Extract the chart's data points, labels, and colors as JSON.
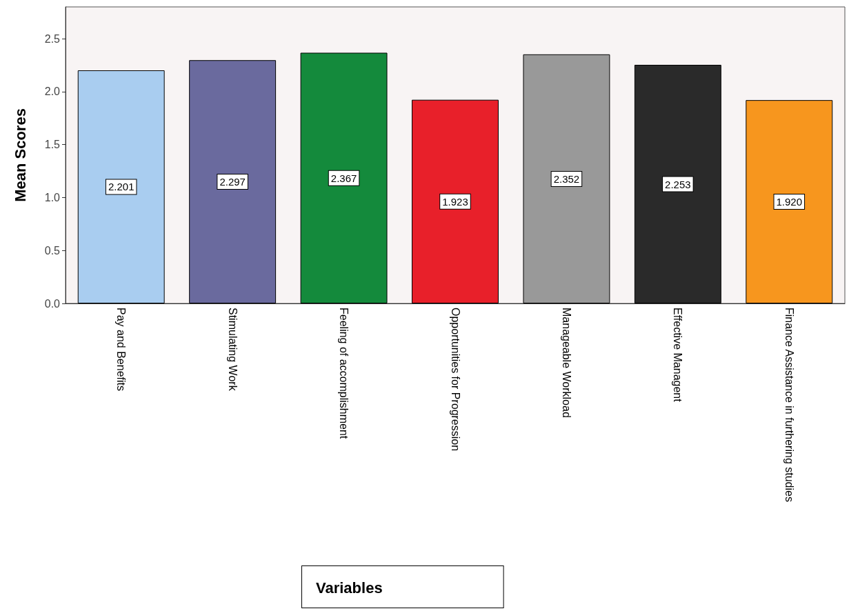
{
  "chart_data": {
    "type": "bar",
    "categories": [
      "Pay and Benefits",
      "Stimulating Work",
      "Feeling of accomplishment",
      "Opportunities for Progression",
      "Manageable Workload",
      "Effective Managent",
      "Finance Assistance in furthering studies"
    ],
    "values": [
      2.201,
      2.297,
      2.367,
      1.923,
      2.352,
      2.253,
      1.92
    ],
    "value_labels": [
      "2.201",
      "2.297",
      "2.367",
      "1.923",
      "2.352",
      "2.253",
      "1.920"
    ],
    "colors": [
      "#a9cdf0",
      "#6a6a9e",
      "#148a3c",
      "#e8202a",
      "#999999",
      "#2a2a2a",
      "#f7961e"
    ],
    "annotations": [
      "Variables"
    ],
    "ylabel": "Mean Scores",
    "ylim": [
      0,
      2.8
    ],
    "yticks": [
      {
        "value": 0,
        "label": "0.0"
      },
      0.5,
      {
        "value": 1,
        "label": "1.0"
      },
      1.5,
      {
        "value": 2,
        "label": "2.0"
      },
      2.5
    ]
  }
}
